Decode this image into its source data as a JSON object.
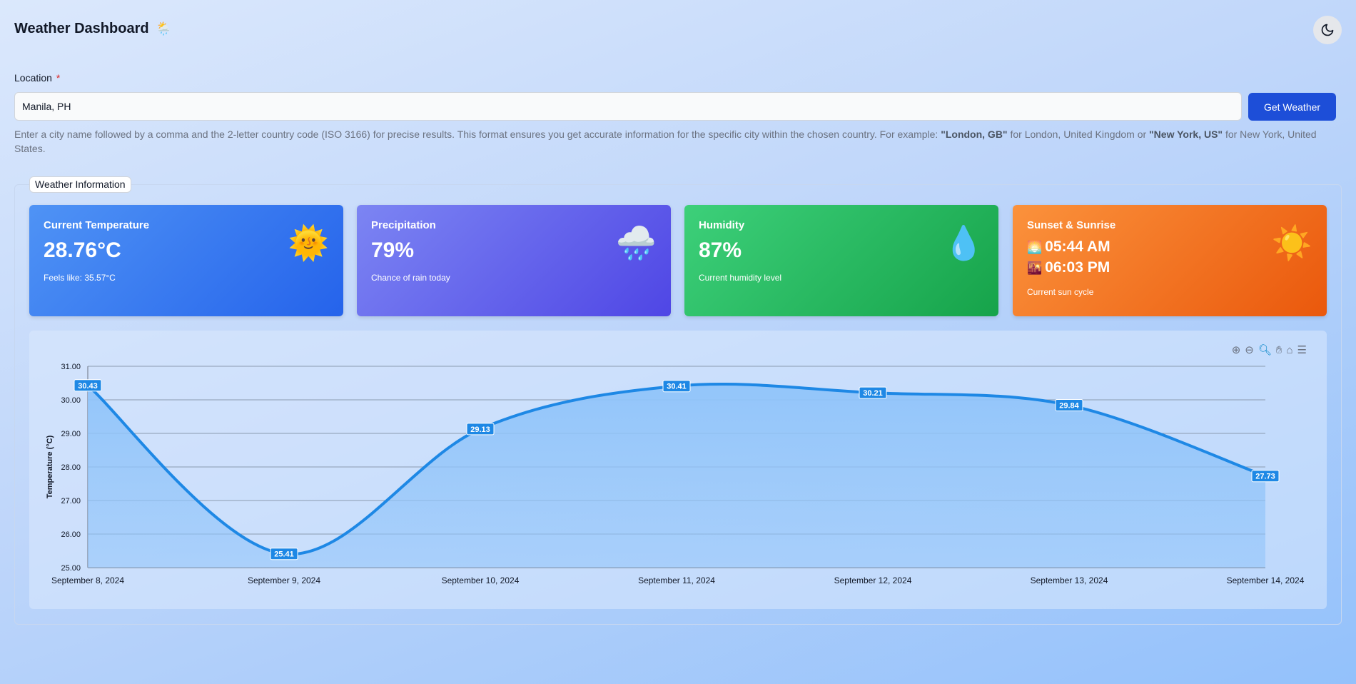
{
  "header": {
    "title": "Weather Dashboard",
    "title_emoji": "🌦️",
    "theme_icon": "moon-icon"
  },
  "location": {
    "label": "Location",
    "required_mark": "*",
    "value": "Manila, PH",
    "button_label": "Get Weather",
    "helper_pre": "Enter a city name followed by a comma and the 2-letter country code (ISO 3166) for precise results. This format ensures you get accurate information for the specific city within the chosen country. For example: ",
    "helper_ex1": "\"London, GB\"",
    "helper_mid": " for London, United Kingdom or ",
    "helper_ex2": "\"New York, US\"",
    "helper_post": " for New York, United States."
  },
  "panel": {
    "legend": "Weather Information"
  },
  "cards": {
    "temperature": {
      "title": "Current Temperature",
      "value": "28.76°C",
      "sub": "Feels like: 35.57°C",
      "icon": "🌞"
    },
    "precipitation": {
      "title": "Precipitation",
      "value": "79%",
      "sub": "Chance of rain today",
      "icon": "🌧️"
    },
    "humidity": {
      "title": "Humidity",
      "value": "87%",
      "sub": "Current humidity level",
      "icon": "💧"
    },
    "sun": {
      "title": "Sunset & Sunrise",
      "sunrise_icon": "🌅",
      "sunrise": "05:44 AM",
      "sunset_icon": "🌇",
      "sunset": "06:03 PM",
      "sub": "Current sun cycle",
      "icon": "☀️"
    }
  },
  "toolbar": [
    "zoom-in-icon",
    "zoom-out-icon",
    "selection-zoom-icon",
    "pan-icon",
    "reset-home-icon",
    "menu-icon"
  ],
  "colors": {
    "line": "#1e88e5",
    "area": "#90c4fa",
    "button": "#1d4ed8"
  },
  "chart_data": {
    "type": "area",
    "categories": [
      "September 8, 2024",
      "September 9, 2024",
      "September 10, 2024",
      "September 11, 2024",
      "September 12, 2024",
      "September 13, 2024",
      "September 14, 2024"
    ],
    "values": [
      30.43,
      25.41,
      29.13,
      30.41,
      30.21,
      29.84,
      27.73
    ],
    "labels": [
      "30.43",
      "25.41",
      "29.13",
      "30.41",
      "30.21",
      "29.84",
      "27.73"
    ],
    "ylabel": "Temperature (°C)",
    "ylim": [
      25,
      31
    ],
    "yticks": [
      "25.00",
      "26.00",
      "27.00",
      "28.00",
      "29.00",
      "30.00",
      "31.00"
    ],
    "grid": true,
    "curve": "smooth"
  }
}
